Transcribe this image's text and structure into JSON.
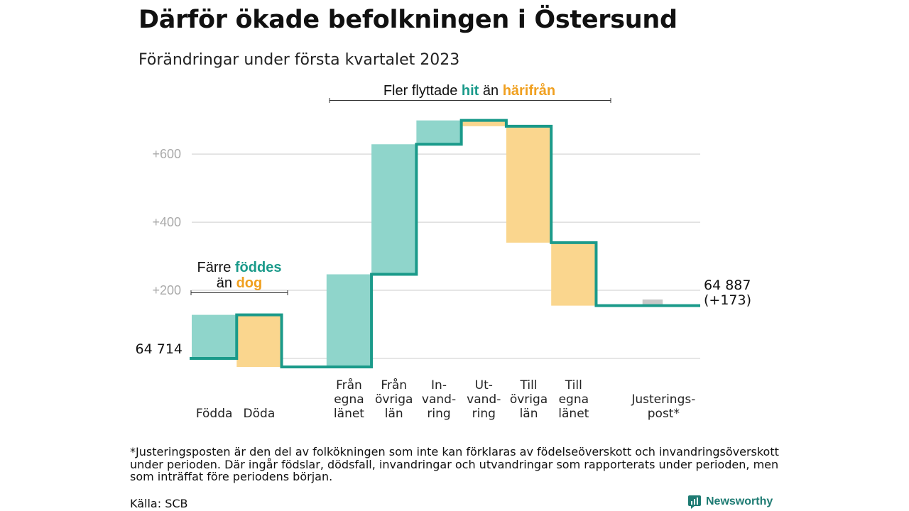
{
  "title": "Därför ökade befolkningen i Östersund",
  "subtitle": "Förändringar under första kvartalet 2023",
  "colors": {
    "increase": "#8fd5cb",
    "decrease": "#fad68e",
    "adjustment": "#c8c8c8",
    "step_line": "#1a9a8a",
    "in_text": "#1a9a8a",
    "out_text": "#f0a020",
    "grid": "#dddddd"
  },
  "chart_data": {
    "type": "waterfall",
    "baseline_population": 64714,
    "start_label": "64 714",
    "end_label": "64 887",
    "end_change_label": "(+173)",
    "y_ticks": [
      {
        "value": 200,
        "label": "+200"
      },
      {
        "value": 400,
        "label": "+400"
      },
      {
        "value": 600,
        "label": "+600"
      }
    ],
    "ylim": [
      -25,
      740
    ],
    "steps": [
      {
        "label_lines": [
          "Födda"
        ],
        "change": 128,
        "kind": "increase"
      },
      {
        "label_lines": [
          "Döda"
        ],
        "change": -153,
        "kind": "decrease"
      },
      {
        "label_lines": [],
        "change": 0,
        "kind": "gap"
      },
      {
        "label_lines": [
          "Från",
          "egna",
          "länet"
        ],
        "change": 272,
        "kind": "increase"
      },
      {
        "label_lines": [
          "Från",
          "övriga",
          "län"
        ],
        "change": 382,
        "kind": "increase"
      },
      {
        "label_lines": [
          "In-",
          "vand-",
          "ring"
        ],
        "change": 70,
        "kind": "increase"
      },
      {
        "label_lines": [
          "Ut-",
          "vand-",
          "ring"
        ],
        "change": -17,
        "kind": "decrease"
      },
      {
        "label_lines": [
          "Till",
          "övriga",
          "län"
        ],
        "change": -342,
        "kind": "decrease"
      },
      {
        "label_lines": [
          "Till",
          "egna",
          "länet"
        ],
        "change": -185,
        "kind": "decrease"
      },
      {
        "label_lines": [],
        "change": 0,
        "kind": "gap"
      },
      {
        "label_lines": [
          "Justerings-",
          "post*"
        ],
        "change": 18,
        "kind": "adjustment"
      }
    ],
    "annotations": {
      "births": {
        "line1": "Färre ",
        "line1_highlight": "föddes",
        "line2": "än ",
        "line2_highlight": "dog"
      },
      "migration": {
        "prefix": "Fler flyttade ",
        "in": "hit",
        "middle": " än ",
        "out": "härifrån"
      }
    }
  },
  "footnote": "*Justeringsposten är den del av folkökningen som inte kan förklaras av födelseöverskott och invandringsöverskott under perioden. Där ingår födslar, dödsfall, invandringar och utvandringar som rapporterats under perioden, men som inträffat före periodens början.",
  "source": "Källa: SCB",
  "brand": {
    "name": "Newsworthy",
    "icon": "newsworthy-logo-icon"
  }
}
